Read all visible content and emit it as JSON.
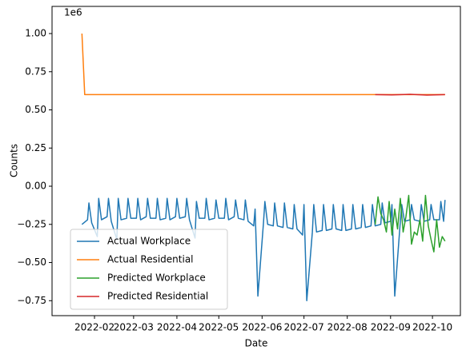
{
  "chart_data": {
    "type": "line",
    "x_label": "Date",
    "y_label": "Counts",
    "y_offset_label": "1e6",
    "xlim": [
      1.6,
      294
    ],
    "ylim": [
      -0.848,
      1.178
    ],
    "xticks": [
      {
        "value": 32,
        "label": "2022-02"
      },
      {
        "value": 60,
        "label": "2022-03"
      },
      {
        "value": 91,
        "label": "2022-04"
      },
      {
        "value": 121,
        "label": "2022-05"
      },
      {
        "value": 152,
        "label": "2022-06"
      },
      {
        "value": 182,
        "label": "2022-07"
      },
      {
        "value": 213,
        "label": "2022-08"
      },
      {
        "value": 244,
        "label": "2022-09"
      },
      {
        "value": 274,
        "label": "2022-10"
      }
    ],
    "yticks": [
      {
        "value": -0.75,
        "label": "−0.75"
      },
      {
        "value": -0.5,
        "label": "−0.50"
      },
      {
        "value": -0.25,
        "label": "−0.25"
      },
      {
        "value": 0,
        "label": "0.00"
      },
      {
        "value": 0.25,
        "label": "0.25"
      },
      {
        "value": 0.5,
        "label": "0.50"
      },
      {
        "value": 0.75,
        "label": "0.75"
      },
      {
        "value": 1.0,
        "label": "1.00"
      }
    ],
    "grid": false,
    "legend": "lower left",
    "series": [
      {
        "name": "Actual Workplace",
        "color": "#1f77b4",
        "x": [
          23,
          27,
          28,
          30,
          34,
          35,
          37,
          41,
          42,
          44,
          48,
          49,
          51,
          55,
          56,
          58,
          62,
          63,
          65,
          69,
          70,
          72,
          76,
          77,
          79,
          83,
          84,
          86,
          90,
          91,
          93,
          97,
          98,
          100,
          104,
          105,
          107,
          111,
          112,
          114,
          118,
          119,
          121,
          125,
          126,
          128,
          132,
          133,
          135,
          139,
          140,
          142,
          146,
          147,
          149,
          153,
          154,
          156,
          160,
          161,
          163,
          167,
          168,
          170,
          174,
          175,
          177,
          181,
          182,
          184,
          188,
          189,
          191,
          195,
          196,
          198,
          202,
          203,
          205,
          209,
          210,
          212,
          216,
          217,
          219,
          223,
          224,
          226,
          230,
          231,
          233,
          237,
          238,
          240,
          244,
          245,
          247,
          251,
          252,
          254,
          258,
          259,
          261,
          265,
          266,
          268,
          272,
          273,
          275,
          279,
          280,
          282,
          283
        ],
        "values": [
          -0.25,
          -0.22,
          -0.11,
          -0.24,
          -0.33,
          -0.08,
          -0.22,
          -0.2,
          -0.08,
          -0.23,
          -0.35,
          -0.08,
          -0.22,
          -0.21,
          -0.08,
          -0.21,
          -0.21,
          -0.08,
          -0.22,
          -0.2,
          -0.08,
          -0.21,
          -0.21,
          -0.08,
          -0.22,
          -0.21,
          -0.08,
          -0.22,
          -0.2,
          -0.08,
          -0.21,
          -0.2,
          -0.08,
          -0.22,
          -0.34,
          -0.1,
          -0.21,
          -0.21,
          -0.08,
          -0.22,
          -0.21,
          -0.09,
          -0.21,
          -0.21,
          -0.08,
          -0.22,
          -0.2,
          -0.09,
          -0.21,
          -0.22,
          -0.09,
          -0.23,
          -0.26,
          -0.15,
          -0.72,
          -0.24,
          -0.1,
          -0.25,
          -0.26,
          -0.11,
          -0.26,
          -0.27,
          -0.11,
          -0.27,
          -0.28,
          -0.12,
          -0.28,
          -0.32,
          -0.12,
          -0.75,
          -0.3,
          -0.12,
          -0.3,
          -0.29,
          -0.12,
          -0.29,
          -0.28,
          -0.12,
          -0.28,
          -0.29,
          -0.12,
          -0.29,
          -0.28,
          -0.12,
          -0.28,
          -0.27,
          -0.12,
          -0.27,
          -0.26,
          -0.12,
          -0.26,
          -0.25,
          -0.11,
          -0.24,
          -0.23,
          -0.12,
          -0.72,
          -0.23,
          -0.12,
          -0.23,
          -0.22,
          -0.12,
          -0.22,
          -0.23,
          -0.12,
          -0.23,
          -0.22,
          -0.12,
          -0.22,
          -0.22,
          -0.1,
          -0.23,
          -0.09
        ]
      },
      {
        "name": "Actual Residential",
        "color": "#ff7f0e",
        "x": [
          23,
          25,
          283
        ],
        "values": [
          1.0,
          0.6,
          0.6
        ]
      },
      {
        "name": "Predicted Workplace",
        "color": "#2ca02c",
        "x": [
          233,
          235,
          237,
          239,
          241,
          243,
          245,
          247,
          249,
          251,
          253,
          255,
          257,
          259,
          261,
          263,
          265,
          267,
          269,
          271,
          273,
          275,
          277,
          279,
          281,
          283
        ],
        "values": [
          -0.25,
          -0.07,
          -0.18,
          -0.22,
          -0.3,
          -0.1,
          -0.32,
          -0.15,
          -0.28,
          -0.08,
          -0.3,
          -0.2,
          -0.06,
          -0.38,
          -0.3,
          -0.32,
          -0.22,
          -0.36,
          -0.06,
          -0.26,
          -0.35,
          -0.43,
          -0.22,
          -0.4,
          -0.33,
          -0.36
        ]
      },
      {
        "name": "Predicted Residential",
        "color": "#d62728",
        "x": [
          233,
          245,
          258,
          270,
          283
        ],
        "values": [
          0.6,
          0.598,
          0.602,
          0.597,
          0.6
        ]
      }
    ]
  }
}
